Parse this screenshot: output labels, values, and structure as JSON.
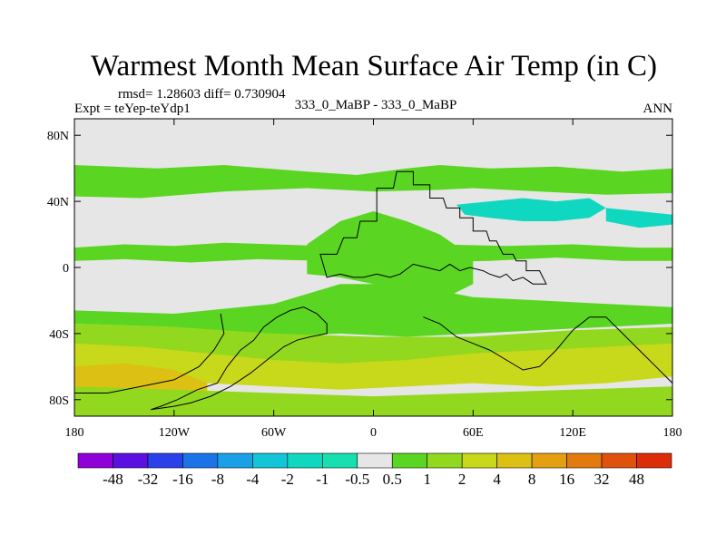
{
  "chart_data": {
    "type": "heatmap",
    "title": "Warmest Month Mean Surface Air Temp (in C)",
    "stats_label": "rmsd= 1.28603 diff= 0.730904",
    "experiment_label": "Expt = teYep-teYdp1",
    "comparison_label": "333_0_MaBP - 333_0_MaBP",
    "season_label": "ANN",
    "x_ticks": [
      "180",
      "120W",
      "60W",
      "0",
      "60E",
      "120E",
      "180"
    ],
    "x_tick_values": [
      -180,
      -120,
      -60,
      0,
      60,
      120,
      180
    ],
    "y_ticks": [
      "80N",
      "40N",
      "0",
      "40S",
      "80S"
    ],
    "y_tick_values": [
      80,
      40,
      0,
      -40,
      -80
    ],
    "xlim": [
      -180,
      180
    ],
    "ylim": [
      -90,
      90
    ],
    "colorbar": {
      "labels": [
        "-48",
        "-32",
        "-16",
        "-8",
        "-4",
        "-2",
        "-1",
        "-0.5",
        "0.5",
        "1",
        "2",
        "4",
        "8",
        "16",
        "32",
        "48"
      ],
      "colors": [
        "#8f00d8",
        "#5a10e0",
        "#2a40e8",
        "#1a74e8",
        "#1aa0e8",
        "#12c6d8",
        "#10d8c0",
        "#16e0b0",
        "#e6e6e6",
        "#5ad622",
        "#92d81e",
        "#c8d81a",
        "#dcc014",
        "#e4a010",
        "#e27a0e",
        "#e0520c",
        "#dc2c08"
      ]
    },
    "regions": [
      {
        "name": "nh-midlat-band",
        "level": "1",
        "lon": [
          -180,
          -130,
          -90,
          -40,
          -10,
          20,
          40,
          70,
          110,
          150,
          180,
          180,
          140,
          100,
          60,
          40,
          0,
          -40,
          -90,
          -140,
          -180
        ],
        "lat": [
          62,
          60,
          62,
          58,
          56,
          60,
          62,
          60,
          61,
          58,
          60,
          45,
          44,
          46,
          48,
          47,
          46,
          48,
          46,
          42,
          43
        ]
      },
      {
        "name": "north-pacific-green",
        "level": "1",
        "lon": [
          -180,
          -150,
          -120,
          -90,
          -60,
          -30,
          -10,
          10,
          40,
          80,
          120,
          160,
          180,
          180,
          150,
          110,
          70,
          30,
          0,
          -30,
          -70,
          -110,
          -150,
          -180
        ],
        "lat": [
          12,
          14,
          13,
          15,
          14,
          13,
          16,
          17,
          14,
          13,
          14,
          12,
          12,
          4,
          4,
          6,
          4,
          3,
          2,
          4,
          5,
          3,
          5,
          4
        ]
      },
      {
        "name": "africa-equatorial-green",
        "level": "1",
        "lon": [
          -40,
          -20,
          0,
          20,
          40,
          60,
          60,
          40,
          20,
          0,
          -20,
          -40
        ],
        "lat": [
          14,
          28,
          34,
          28,
          20,
          6,
          -10,
          -20,
          -18,
          -10,
          -6,
          -4
        ]
      },
      {
        "name": "south-tropical-green",
        "level": "1",
        "lon": [
          -180,
          -120,
          -60,
          -20,
          20,
          60,
          100,
          140,
          180,
          180,
          140,
          100,
          60,
          20,
          -20,
          -60,
          -120,
          -180
        ],
        "lat": [
          -26,
          -28,
          -22,
          -10,
          -10,
          -18,
          -20,
          -22,
          -24,
          -34,
          -36,
          -38,
          -40,
          -42,
          -40,
          -42,
          -36,
          -34
        ]
      },
      {
        "name": "south-midlat-band",
        "level": "2",
        "lon": [
          -180,
          -120,
          -60,
          0,
          60,
          120,
          180,
          180,
          120,
          60,
          0,
          -60,
          -120,
          -180
        ],
        "lat": [
          -34,
          -36,
          -40,
          -42,
          -42,
          -38,
          -36,
          -62,
          -64,
          -66,
          -66,
          -64,
          -62,
          -60
        ]
      },
      {
        "name": "south-subpolar-yellow",
        "level": "4",
        "lon": [
          -180,
          -140,
          -100,
          -60,
          -20,
          20,
          60,
          100,
          140,
          180,
          180,
          140,
          100,
          60,
          20,
          -20,
          -60,
          -100,
          -140,
          -180
        ],
        "lat": [
          -46,
          -48,
          -52,
          -56,
          -58,
          -56,
          -52,
          -50,
          -48,
          -46,
          -66,
          -70,
          -72,
          -70,
          -72,
          -74,
          -72,
          -70,
          -68,
          -66
        ]
      },
      {
        "name": "south-pacific-orange",
        "level": "8",
        "lon": [
          -180,
          -150,
          -120,
          -100,
          -100,
          -120,
          -150,
          -180
        ],
        "lat": [
          -60,
          -58,
          -62,
          -70,
          -80,
          -78,
          -76,
          -74
        ]
      },
      {
        "name": "antarctic-green",
        "level": "2",
        "lon": [
          -180,
          -120,
          -60,
          0,
          60,
          120,
          180,
          180,
          -180
        ],
        "lat": [
          -72,
          -74,
          -76,
          -78,
          -76,
          -74,
          -72,
          -90,
          -90
        ]
      },
      {
        "name": "n-atlantic-cool",
        "level": "-1",
        "lon": [
          50,
          70,
          90,
          110,
          130,
          140,
          130,
          110,
          90,
          70,
          55
        ],
        "lat": [
          38,
          40,
          42,
          40,
          42,
          36,
          30,
          28,
          28,
          30,
          32
        ]
      },
      {
        "name": "ne-pacific-cool",
        "level": "-1",
        "lon": [
          140,
          160,
          180,
          180,
          160,
          140
        ],
        "lat": [
          36,
          34,
          32,
          26,
          24,
          28
        ]
      }
    ],
    "continents": [
      {
        "name": "main-continent",
        "lon": [
          -32,
          -22,
          -18,
          -10,
          -8,
          2,
          2,
          12,
          14,
          24,
          24,
          34,
          34,
          42,
          44,
          52,
          52,
          60,
          60,
          68,
          70,
          74,
          78,
          84,
          86,
          92,
          92,
          100,
          102,
          104,
          96,
          90,
          84,
          80,
          76,
          70,
          66,
          58,
          52,
          46,
          40,
          32,
          24,
          16,
          10,
          2,
          -6,
          -12,
          -20,
          -28,
          -32
        ],
        "lat": [
          8,
          8,
          18,
          18,
          28,
          28,
          48,
          48,
          58,
          58,
          50,
          50,
          42,
          42,
          36,
          36,
          30,
          30,
          22,
          22,
          16,
          16,
          8,
          8,
          4,
          4,
          -2,
          -2,
          -6,
          -10,
          -10,
          -6,
          -8,
          -4,
          -6,
          -4,
          -2,
          0,
          -2,
          2,
          -2,
          0,
          2,
          -4,
          -6,
          -4,
          -6,
          -6,
          -4,
          -6,
          8
        ]
      },
      {
        "name": "south-continent",
        "lon": [
          -128,
          -118,
          -106,
          -94,
          -88,
          -80,
          -72,
          -66,
          -58,
          -50,
          -42,
          -34,
          -28,
          -28,
          -38,
          -46,
          -54,
          -64,
          -74,
          -86,
          -98,
          -110,
          -120,
          -134
        ],
        "lat": [
          -84,
          -80,
          -74,
          -70,
          -60,
          -50,
          -44,
          -36,
          -30,
          -26,
          -24,
          -28,
          -34,
          -40,
          -42,
          -44,
          -48,
          -56,
          -64,
          -72,
          -78,
          -82,
          -84,
          -86
        ]
      },
      {
        "name": "southern-ridge",
        "lon": [
          30,
          40,
          50,
          60,
          70,
          80,
          90,
          100,
          110,
          120,
          130,
          140,
          150,
          160,
          170,
          180
        ],
        "lat": [
          -30,
          -34,
          -42,
          -46,
          -50,
          -56,
          -62,
          -60,
          -50,
          -38,
          -30,
          -30,
          -40,
          -50,
          -60,
          -70
        ]
      },
      {
        "name": "western-arc",
        "lon": [
          -180,
          -160,
          -140,
          -120,
          -105,
          -96,
          -90,
          -92
        ],
        "lat": [
          -76,
          -76,
          -72,
          -68,
          -60,
          -50,
          -40,
          -28
        ]
      }
    ]
  }
}
